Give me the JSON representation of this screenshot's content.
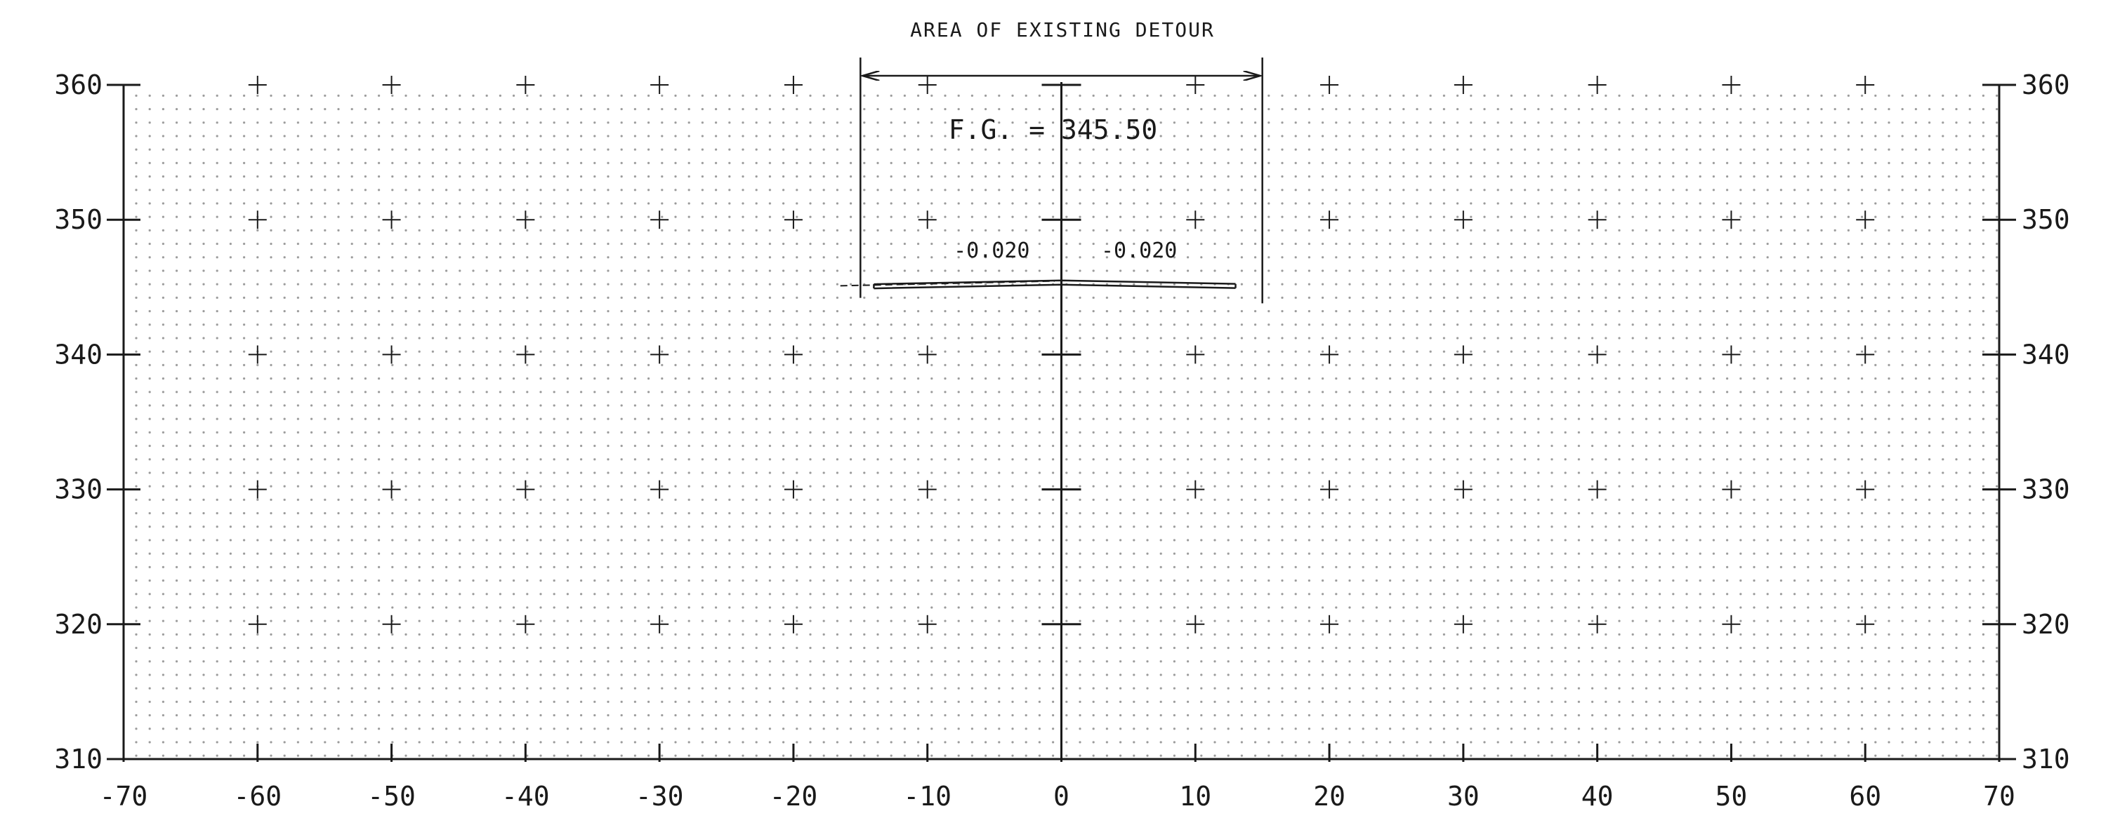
{
  "title": "AREA OF EXISTING DETOUR",
  "finished_grade_label": "F.G. = 345.50",
  "left_slope_label": "-0.020",
  "right_slope_label": "-0.020",
  "colors": {
    "ink": "#1a1a1a",
    "grid_dots": "#9a9a9a",
    "background": "#ffffff"
  },
  "axes": {
    "x_ticks": [
      "-70",
      "-60",
      "-50",
      "-40",
      "-30",
      "-20",
      "-10",
      "0",
      "10",
      "20",
      "30",
      "40",
      "50",
      "60",
      "70"
    ],
    "y_ticks_left": [
      "360",
      "350",
      "340",
      "330",
      "320",
      "310"
    ],
    "y_ticks_right": [
      "360",
      "350",
      "340",
      "330",
      "320",
      "310"
    ]
  },
  "chart_data": {
    "type": "line",
    "title": "AREA OF EXISTING DETOUR",
    "xlim": [
      -70,
      70
    ],
    "ylim": [
      310,
      360
    ],
    "x_tick_step": 10,
    "y_tick_step": 10,
    "grid": true,
    "finished_grade": 345.5,
    "detour_area_x": [
      -15,
      15
    ],
    "series": [
      {
        "values": [
          [
            -14,
            345.22
          ],
          [
            0,
            345.5
          ],
          [
            13,
            345.24
          ]
        ]
      }
    ],
    "slopes": [
      -0.02,
      -0.02
    ]
  }
}
